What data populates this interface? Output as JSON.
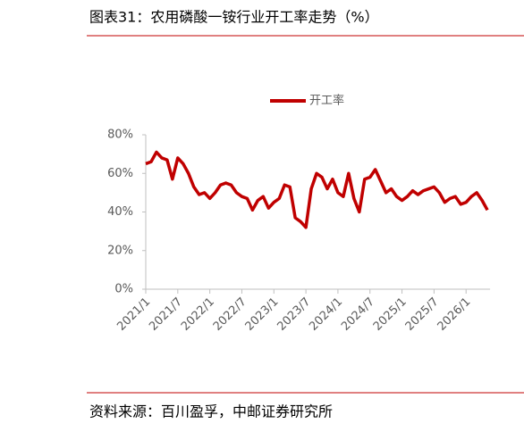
{
  "header": {
    "title": "图表31：农用磷酸一铵行业开工率走势（%）"
  },
  "footer": {
    "source": "资料来源：百川盈孚，中邮证券研究所"
  },
  "chart_data": {
    "type": "line",
    "categories": [
      "2021/1",
      null,
      null,
      null,
      null,
      null,
      "2021/7",
      null,
      null,
      null,
      null,
      null,
      "2022/1",
      null,
      null,
      null,
      null,
      null,
      "2022/7",
      null,
      null,
      null,
      null,
      null,
      "2023/1",
      null,
      null,
      null,
      null,
      null,
      "2023/7",
      null,
      null,
      null,
      null,
      null,
      "2024/1",
      null,
      null,
      null,
      null,
      null,
      "2024/7",
      null,
      null,
      null,
      null,
      null,
      "2025/1",
      null,
      null,
      null,
      null,
      null,
      "2025/7",
      null,
      null,
      null,
      null,
      null,
      "2026/1",
      null,
      null,
      null,
      null
    ],
    "series": [
      {
        "name": "开工率",
        "color": "#c00000",
        "values": [
          65,
          66,
          71,
          68,
          67,
          57,
          68,
          65,
          60,
          53,
          49,
          50,
          47,
          50,
          54,
          55,
          54,
          50,
          48,
          47,
          41,
          46,
          48,
          42,
          45,
          47,
          54,
          53,
          37,
          35,
          32,
          52,
          60,
          58,
          52,
          57,
          50,
          48,
          60,
          47,
          40,
          57,
          58,
          62,
          56,
          50,
          52,
          48,
          46,
          48,
          51,
          49,
          51,
          52,
          53,
          50,
          45,
          47,
          48,
          44,
          45,
          48,
          50,
          46,
          41
        ]
      }
    ],
    "ylim": [
      0,
      80
    ],
    "yticks": [
      {
        "value": 0,
        "label": "0%"
      },
      {
        "value": 20,
        "label": "20%"
      },
      {
        "value": 40,
        "label": "40%"
      },
      {
        "value": 60,
        "label": "60%"
      },
      {
        "value": 80,
        "label": "80%"
      }
    ],
    "legend": "top"
  }
}
